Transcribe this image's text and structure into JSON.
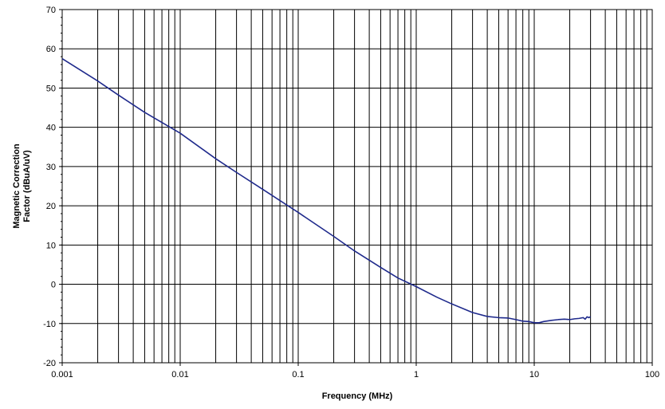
{
  "chart_data": {
    "type": "line",
    "title": "",
    "xlabel": "Frequency (MHz)",
    "ylabel_lines": [
      "Magnetic Correction",
      "Factor (dBuA/uV)"
    ],
    "x_scale": "log",
    "xlim": [
      0.001,
      100
    ],
    "ylim": [
      -20,
      70
    ],
    "x_ticks": [
      0.001,
      0.01,
      0.1,
      1,
      10,
      100
    ],
    "x_tick_labels": [
      "0.001",
      "0.01",
      "0.1",
      "1",
      "10",
      "100"
    ],
    "y_ticks": [
      -20,
      -10,
      0,
      10,
      20,
      30,
      40,
      50,
      60,
      70
    ],
    "y_tick_labels": [
      "-20",
      "-10",
      "0",
      "10",
      "20",
      "30",
      "40",
      "50",
      "60",
      "70"
    ],
    "grid": true,
    "legend": "none",
    "series": [
      {
        "color": "#1f2a8c",
        "x": [
          0.001,
          0.002,
          0.003,
          0.005,
          0.01,
          0.02,
          0.03,
          0.05,
          0.1,
          0.2,
          0.3,
          0.5,
          0.7,
          1,
          1.5,
          2,
          3,
          4,
          5,
          6,
          7,
          8,
          9,
          10,
          11,
          12,
          14,
          16,
          18,
          20,
          22,
          24,
          26,
          27,
          28,
          29,
          30
        ],
        "y": [
          57.5,
          51.8,
          48.2,
          43.8,
          38.5,
          32.0,
          28.5,
          24.2,
          18.3,
          12.2,
          8.5,
          4.3,
          1.6,
          -0.6,
          -3.3,
          -5.0,
          -7.2,
          -8.2,
          -8.5,
          -8.6,
          -9.0,
          -9.4,
          -9.5,
          -9.8,
          -9.8,
          -9.5,
          -9.2,
          -9.0,
          -8.9,
          -9.0,
          -8.8,
          -8.7,
          -8.5,
          -8.9,
          -8.3,
          -8.5,
          -8.3
        ]
      }
    ]
  }
}
